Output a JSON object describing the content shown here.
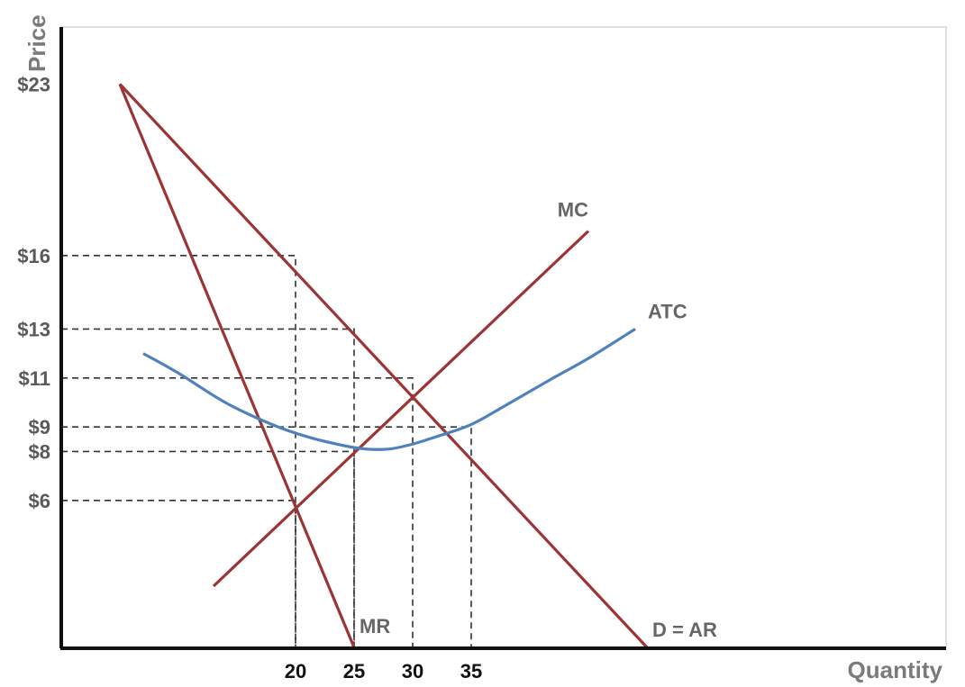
{
  "chart_data": {
    "type": "line",
    "title": "",
    "xlabel": "Quantity",
    "ylabel": "Price",
    "xlim": [
      0,
      75
    ],
    "ylim": [
      0,
      23
    ],
    "y_ticks": [
      {
        "value": 23,
        "label": "$23"
      },
      {
        "value": 16,
        "label": "$16"
      },
      {
        "value": 13,
        "label": "$13"
      },
      {
        "value": 11,
        "label": "$11"
      },
      {
        "value": 9,
        "label": "$9"
      },
      {
        "value": 8,
        "label": "$8"
      },
      {
        "value": 6,
        "label": "$6"
      }
    ],
    "x_ticks": [
      {
        "value": 20,
        "label": "20"
      },
      {
        "value": 25,
        "label": "25"
      },
      {
        "value": 30,
        "label": "30"
      },
      {
        "value": 35,
        "label": "35"
      }
    ],
    "series": [
      {
        "name": "D = AR",
        "color": "#9b3535",
        "points": [
          [
            5,
            23
          ],
          [
            50,
            0
          ]
        ]
      },
      {
        "name": "MR",
        "color": "#9b3535",
        "points": [
          [
            5,
            23
          ],
          [
            25,
            0
          ]
        ]
      },
      {
        "name": "MC",
        "color": "#9b3535",
        "points": [
          [
            13,
            2.5
          ],
          [
            45,
            17
          ]
        ]
      },
      {
        "name": "ATC",
        "color": "#4f81bd",
        "points": [
          [
            7,
            12
          ],
          [
            10,
            11.2
          ],
          [
            14,
            10
          ],
          [
            18,
            9.1
          ],
          [
            21,
            8.6
          ],
          [
            24,
            8.25
          ],
          [
            26,
            8.1
          ],
          [
            28,
            8.1
          ],
          [
            30,
            8.3
          ],
          [
            32,
            8.6
          ],
          [
            35,
            9.1
          ],
          [
            38,
            9.9
          ],
          [
            42,
            11
          ],
          [
            45,
            11.8
          ],
          [
            49,
            13
          ]
        ]
      }
    ],
    "reference_lines": [
      {
        "x": 20,
        "y": 16
      },
      {
        "x": 25,
        "y": 13
      },
      {
        "x": 30,
        "y": 11
      },
      {
        "x": 35,
        "y": 9
      },
      {
        "x": 25,
        "y": 8
      },
      {
        "x": 20,
        "y": 6
      }
    ],
    "colors": {
      "axis": "#111111",
      "dash": "#333333"
    }
  }
}
